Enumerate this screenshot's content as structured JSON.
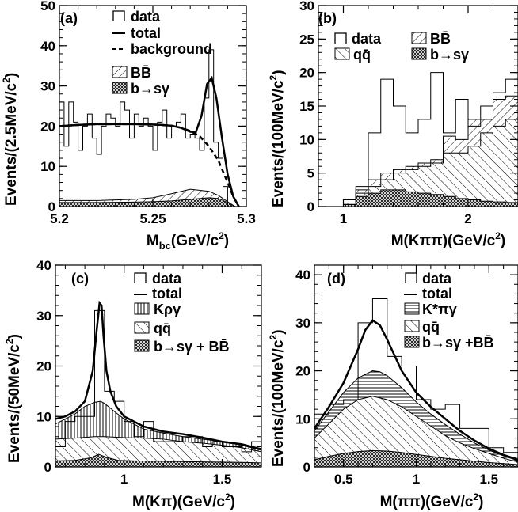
{
  "chart_data": [
    {
      "type": "bar",
      "panel_label": "(a)",
      "xlabel": "M",
      "xlabel_sub": "bc",
      "xlabel_unit": "(GeV/c",
      "xlabel_sup": "2",
      "xlabel_close": ")",
      "ylabel": "Events/(2.5MeV/c",
      "ylabel_sup": "2",
      "ylabel_close": ")",
      "xlim": [
        5.2,
        5.3
      ],
      "ylim": [
        0,
        50
      ],
      "x_ticks": [
        "5.2",
        "5.25",
        "5.3"
      ],
      "y_ticks": [
        "0",
        "10",
        "20",
        "30",
        "40",
        "50"
      ],
      "legend": [
        "data",
        "total",
        "background",
        "BB̄",
        "b→sγ"
      ],
      "bin_edges": [
        5.2,
        5.2025,
        5.205,
        5.2075,
        5.21,
        5.2125,
        5.215,
        5.2175,
        5.22,
        5.2225,
        5.225,
        5.2275,
        5.23,
        5.2325,
        5.235,
        5.2375,
        5.24,
        5.2425,
        5.245,
        5.2475,
        5.25,
        5.2525,
        5.255,
        5.2575,
        5.26,
        5.2625,
        5.265,
        5.2675,
        5.27,
        5.2725,
        5.275,
        5.2775,
        5.28,
        5.2825,
        5.285,
        5.2875,
        5.29
      ],
      "data": [
        26,
        15,
        26,
        21,
        14,
        20,
        23,
        17,
        13,
        20,
        23,
        22,
        20,
        26,
        24,
        17,
        23,
        20,
        22,
        20,
        14,
        21,
        24,
        17,
        20,
        21,
        23,
        17,
        18,
        17,
        14,
        27,
        39,
        16,
        12,
        5
      ],
      "total_curve": {
        "x": [
          5.2,
          5.21,
          5.22,
          5.23,
          5.24,
          5.25,
          5.255,
          5.26,
          5.265,
          5.27,
          5.273,
          5.276,
          5.279,
          5.2815,
          5.284,
          5.287,
          5.29,
          5.293,
          5.296
        ],
        "y": [
          20,
          20.3,
          20.5,
          20.5,
          20.5,
          20.4,
          20.3,
          20.1,
          19.6,
          18.6,
          18.5,
          22.5,
          30.5,
          32,
          27,
          17,
          8,
          2.5,
          0
        ]
      },
      "background_curve": {
        "x": [
          5.2,
          5.21,
          5.22,
          5.23,
          5.24,
          5.25,
          5.26,
          5.265,
          5.27,
          5.275,
          5.28,
          5.285,
          5.29,
          5.293,
          5.296
        ],
        "y": [
          20,
          20.3,
          20.5,
          20.5,
          20.5,
          20.4,
          20.1,
          19.6,
          18.8,
          17.5,
          15,
          11.5,
          6,
          2.5,
          0
        ]
      },
      "bb_curve": {
        "x": [
          5.2,
          5.22,
          5.24,
          5.25,
          5.26,
          5.27,
          5.28,
          5.285,
          5.29,
          5.294
        ],
        "y": [
          1.5,
          1.5,
          1.8,
          2.2,
          3.2,
          4.3,
          3.8,
          2.8,
          1.2,
          0
        ]
      },
      "bsg_curve": {
        "x": [
          5.2,
          5.22,
          5.24,
          5.25,
          5.26,
          5.27,
          5.28,
          5.285,
          5.29,
          5.294
        ],
        "y": [
          1.0,
          1.0,
          1.1,
          1.2,
          1.4,
          1.8,
          2.2,
          2.0,
          1.0,
          0
        ]
      }
    },
    {
      "type": "bar",
      "panel_label": "(b)",
      "xlabel": "M(Kππ)(GeV/c",
      "xlabel_sup": "2",
      "xlabel_close": ")",
      "ylabel": "Events/(100MeV/c",
      "ylabel_sup": "2",
      "ylabel_close": ")",
      "xlim": [
        0.8,
        2.4
      ],
      "ylim": [
        0,
        30
      ],
      "x_ticks": [
        "1",
        "2"
      ],
      "y_ticks": [
        "0",
        "5",
        "10",
        "15",
        "20",
        "25",
        "30"
      ],
      "legend": [
        "data",
        "BB̄",
        "qq̄",
        "b→sγ"
      ],
      "bin_edges": [
        0.8,
        0.9,
        1.0,
        1.1,
        1.2,
        1.3,
        1.4,
        1.5,
        1.6,
        1.7,
        1.8,
        1.9,
        2.0,
        2.1,
        2.2,
        2.3,
        2.4
      ],
      "data": [
        0,
        0,
        1,
        3,
        11,
        19,
        15,
        11,
        13,
        20,
        11,
        16,
        12,
        15,
        17,
        19
      ],
      "qq_stack": [
        0,
        0,
        0.5,
        2,
        3,
        4,
        5,
        5.5,
        6,
        6.5,
        8,
        8,
        9,
        11,
        12,
        13
      ],
      "bb_stack": [
        0,
        0,
        0.5,
        2.5,
        4,
        5,
        5.5,
        6,
        6.5,
        7,
        10.5,
        10,
        13,
        13,
        16,
        16.5
      ],
      "bsg_stack": [
        0,
        0,
        0.3,
        1.5,
        2,
        2.5,
        2.5,
        2.2,
        2,
        1.8,
        1.5,
        1.2,
        1,
        0.8,
        0.7,
        0.6
      ]
    },
    {
      "type": "bar",
      "panel_label": "(c)",
      "xlabel": "M(Kπ)(GeV/c",
      "xlabel_sup": "2",
      "xlabel_close": ")",
      "ylabel": "Events/(50MeV/c",
      "ylabel_sup": "2",
      "ylabel_close": ")",
      "xlim": [
        0.65,
        1.7
      ],
      "ylim": [
        0,
        40
      ],
      "x_ticks": [
        "1",
        "1.5"
      ],
      "y_ticks": [
        "0",
        "10",
        "20",
        "30",
        "40"
      ],
      "legend": [
        "data",
        "total",
        "Kργ",
        "qq̄",
        "b→sγ + BB̄"
      ],
      "bin_edges": [
        0.65,
        0.7,
        0.75,
        0.8,
        0.85,
        0.9,
        0.95,
        1.0,
        1.05,
        1.1,
        1.15,
        1.2,
        1.25,
        1.3,
        1.35,
        1.4,
        1.45,
        1.5,
        1.55,
        1.6,
        1.65,
        1.7
      ],
      "data": [
        4,
        9,
        10,
        10,
        31,
        15,
        13,
        9,
        6,
        9,
        5,
        5,
        5,
        6,
        6,
        4,
        5,
        4,
        4,
        3,
        5
      ],
      "total_curve": {
        "x": [
          0.65,
          0.7,
          0.75,
          0.8,
          0.84,
          0.86,
          0.875,
          0.885,
          0.895,
          0.91,
          0.93,
          0.96,
          1.0,
          1.1,
          1.2,
          1.3,
          1.4,
          1.5,
          1.6,
          1.7
        ],
        "y": [
          9.5,
          10,
          11,
          13,
          19,
          27,
          32.5,
          32,
          26,
          19,
          15,
          12,
          10,
          8,
          7,
          6.5,
          5.8,
          5,
          4.5,
          3.5
        ]
      },
      "krg_curve": {
        "x": [
          0.65,
          0.7,
          0.75,
          0.8,
          0.85,
          0.88,
          0.9,
          0.95,
          1.0,
          1.05,
          1.1,
          1.2,
          1.3,
          1.4,
          1.5,
          1.6,
          1.7
        ],
        "y": [
          8.5,
          9.5,
          10.5,
          12,
          12.8,
          13,
          12.6,
          11,
          9.5,
          8.5,
          7.5,
          6.7,
          6,
          5.5,
          5,
          4.3,
          3.3
        ]
      },
      "qq_curve": {
        "x": [
          0.65,
          0.75,
          0.85,
          0.9,
          1.0,
          1.1,
          1.2,
          1.3,
          1.4,
          1.5,
          1.6,
          1.7
        ],
        "y": [
          5.5,
          5.7,
          6,
          6,
          5.8,
          5.7,
          5.5,
          5,
          4.7,
          4.3,
          3.8,
          3
        ]
      },
      "bsg_curve": {
        "x": [
          0.65,
          0.75,
          0.83,
          0.87,
          0.91,
          0.97,
          1.05,
          1.2,
          1.4,
          1.6,
          1.7
        ],
        "y": [
          1.2,
          1.3,
          1.8,
          2.5,
          1.9,
          1.3,
          1.2,
          1.1,
          1.0,
          0.9,
          0.8
        ]
      }
    },
    {
      "type": "bar",
      "panel_label": "(d)",
      "xlabel": "M(ππ)(GeV/c",
      "xlabel_sup": "2",
      "xlabel_close": ")",
      "ylabel": "Events/(100MeV/c",
      "ylabel_sup": "2",
      "ylabel_close": ")",
      "xlim": [
        0.3,
        1.7
      ],
      "ylim": [
        0,
        42
      ],
      "x_ticks": [
        "0.5",
        "1",
        "1.5"
      ],
      "y_ticks": [
        "0",
        "10",
        "20",
        "30",
        "40"
      ],
      "legend": [
        "data",
        "total",
        "K*πγ",
        "qq̄",
        "b→sγ +BB̄"
      ],
      "bin_edges": [
        0.3,
        0.4,
        0.5,
        0.6,
        0.7,
        0.8,
        0.9,
        1.0,
        1.1,
        1.2,
        1.3,
        1.4,
        1.5,
        1.6,
        1.7
      ],
      "data": [
        11,
        13,
        14,
        30,
        35,
        23,
        21,
        14,
        12,
        13,
        8,
        8,
        4,
        3
      ],
      "total_curve": {
        "x": [
          0.3,
          0.4,
          0.5,
          0.6,
          0.65,
          0.7,
          0.75,
          0.8,
          0.9,
          1.0,
          1.1,
          1.2,
          1.3,
          1.4,
          1.5,
          1.6,
          1.7
        ],
        "y": [
          8,
          12.5,
          17.5,
          24.5,
          28.5,
          30.5,
          29.5,
          26.5,
          20,
          15.5,
          12.5,
          10,
          7.5,
          5.5,
          3.8,
          2.5,
          1.5
        ]
      },
      "kpg_curve": {
        "x": [
          0.3,
          0.4,
          0.5,
          0.6,
          0.7,
          0.75,
          0.8,
          0.9,
          1.0,
          1.1,
          1.2,
          1.3,
          1.4,
          1.5,
          1.6,
          1.7
        ],
        "y": [
          7.5,
          11.5,
          15.5,
          18.5,
          20,
          19.8,
          19,
          16.5,
          13.5,
          11,
          8.8,
          6.8,
          5,
          3.5,
          2.3,
          1.3
        ]
      },
      "qq_curve": {
        "x": [
          0.3,
          0.4,
          0.5,
          0.6,
          0.7,
          0.8,
          0.9,
          1.0,
          1.1,
          1.2,
          1.3,
          1.4,
          1.5,
          1.6,
          1.7
        ],
        "y": [
          6,
          9,
          12,
          14,
          14.7,
          14,
          12.5,
          10.5,
          8.5,
          6.5,
          5,
          3.8,
          2.8,
          1.8,
          1
        ]
      },
      "bsg_curve": {
        "x": [
          0.3,
          0.4,
          0.5,
          0.6,
          0.7,
          0.8,
          0.9,
          1.0,
          1.1,
          1.2,
          1.3,
          1.4,
          1.5,
          1.6,
          1.7
        ],
        "y": [
          1.5,
          2.2,
          2.8,
          3.2,
          3.4,
          3.3,
          3.0,
          2.6,
          2.2,
          1.8,
          1.5,
          1.2,
          0.9,
          0.7,
          0.5
        ]
      }
    }
  ]
}
